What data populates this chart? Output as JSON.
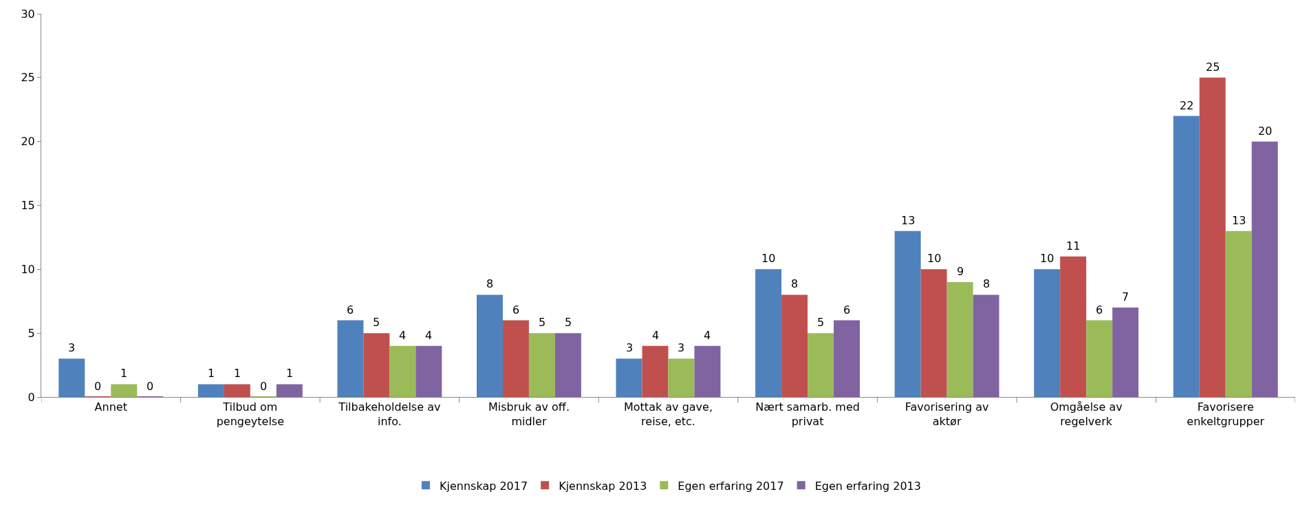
{
  "chart_data": {
    "type": "bar",
    "categories": [
      "Annet",
      "Tilbud om pengeytelse",
      "Tilbakeholdelse av info.",
      "Misbruk av off. midler",
      "Mottak av gave, reise, etc.",
      "Nært samarb. med privat",
      "Favorisering av aktør",
      "Omgåelse av regelverk",
      "Favorisere enkeltgrupper"
    ],
    "series": [
      {
        "name": "Kjennskap 2017",
        "color": "#4f81bd",
        "values": [
          3,
          1,
          6,
          8,
          3,
          10,
          13,
          10,
          22
        ]
      },
      {
        "name": "Kjennskap 2013",
        "color": "#c0504d",
        "values": [
          0,
          1,
          5,
          6,
          4,
          8,
          10,
          11,
          25
        ]
      },
      {
        "name": "Egen erfaring 2017",
        "color": "#9bbb59",
        "values": [
          1,
          0,
          4,
          5,
          3,
          5,
          9,
          6,
          13
        ]
      },
      {
        "name": "Egen erfaring 2013",
        "color": "#8064a2",
        "values": [
          0,
          1,
          4,
          5,
          4,
          6,
          8,
          7,
          20
        ]
      }
    ],
    "ylim": [
      0,
      30
    ],
    "yticks": [
      0,
      5,
      10,
      15,
      20,
      25,
      30
    ],
    "grid": false,
    "legend": "bottom",
    "data_labels": true
  }
}
